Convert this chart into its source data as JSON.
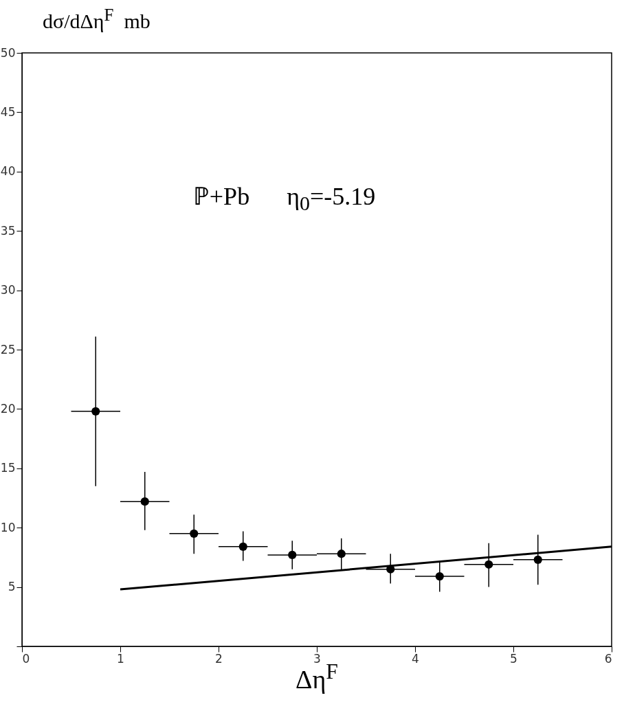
{
  "chart_data": {
    "type": "scatter",
    "xlabel": "Δη$^{F}$",
    "ylabel": "dσ/dΔη$^{F}$  mb",
    "annotations": [
      "ℙ+Pb      η$_{0}$=-5.19"
    ],
    "xlim": [
      0,
      6
    ],
    "xticks": [
      0,
      1,
      2,
      3,
      4,
      5,
      6
    ],
    "ylim": [
      0,
      50
    ],
    "yticks": [
      {
        "value": 0,
        "label": null
      },
      5,
      10,
      15,
      20,
      25,
      30,
      35,
      40,
      45,
      50
    ],
    "grid": false,
    "series": [
      {
        "color": "#000000",
        "marker": "circle",
        "x": [
          0.75,
          1.25,
          1.75,
          2.25,
          2.75,
          3.25,
          3.75,
          4.25,
          4.75,
          5.25
        ],
        "values": [
          19.8,
          12.2,
          9.5,
          8.4,
          7.7,
          7.8,
          6.5,
          5.9,
          6.9,
          7.3
        ],
        "errors": [
          [
            13.5,
            26.1
          ],
          [
            9.8,
            14.7
          ],
          [
            7.8,
            11.1
          ],
          [
            7.2,
            9.7
          ],
          [
            6.5,
            8.9
          ],
          [
            6.4,
            9.1
          ],
          [
            5.3,
            7.8
          ],
          [
            4.6,
            7.2
          ],
          [
            5.0,
            8.7
          ],
          [
            5.2,
            9.4
          ]
        ],
        "xerrors": [
          0.25,
          0.25,
          0.25,
          0.25,
          0.25,
          0.25,
          0.25,
          0.25,
          0.25,
          0.25
        ]
      },
      {
        "type": "line",
        "color": "#000000",
        "x": [
          1,
          6
        ],
        "values": [
          4.8,
          8.4
        ],
        "line_style": "solid"
      }
    ]
  }
}
